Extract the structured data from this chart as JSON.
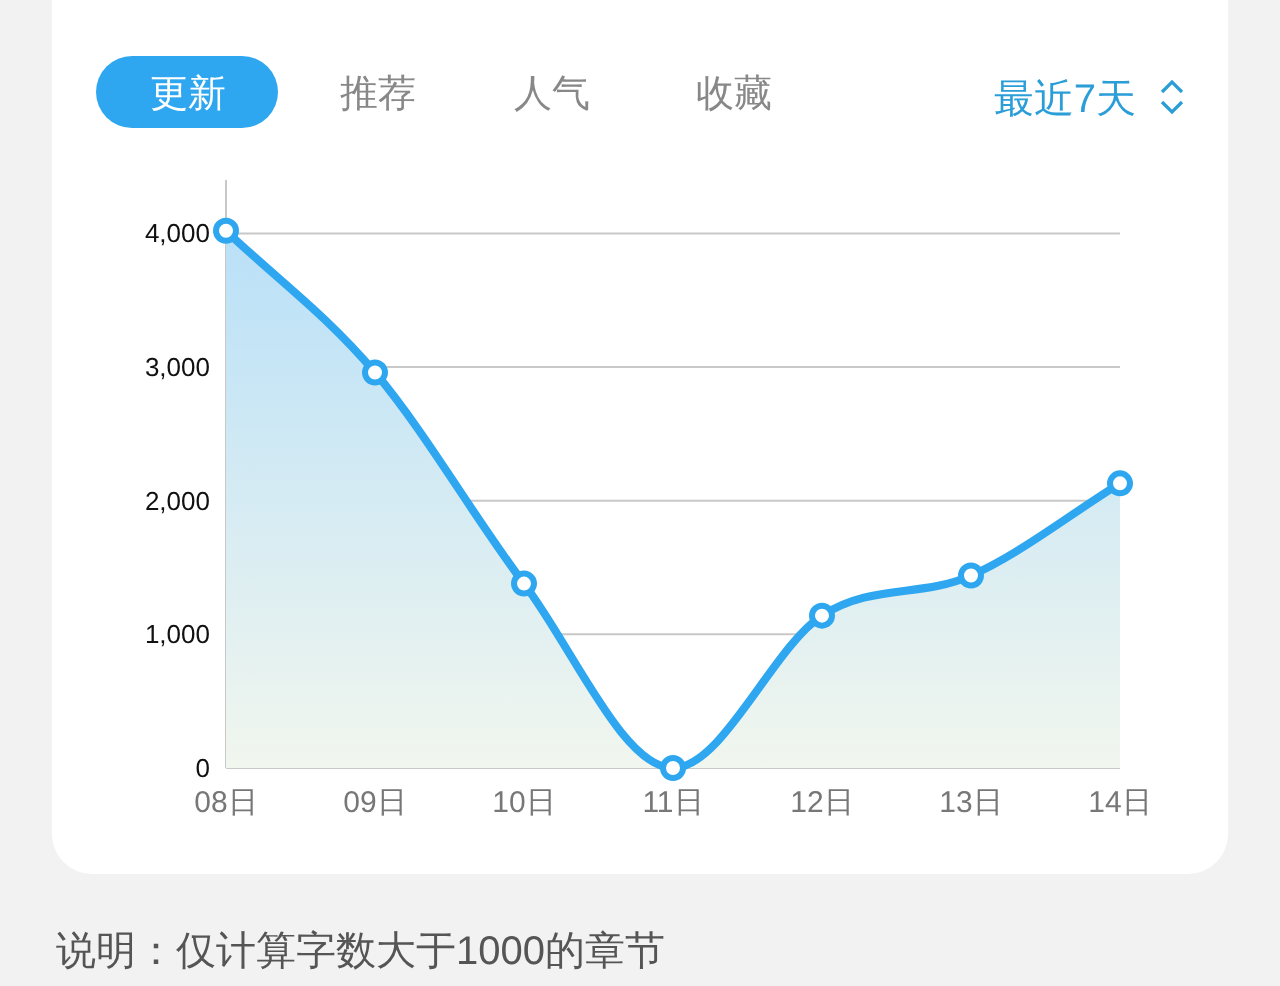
{
  "chart_data": {
    "type": "area",
    "categories": [
      "08日",
      "09日",
      "10日",
      "11日",
      "12日",
      "13日",
      "14日"
    ],
    "series": [
      {
        "color": "#2ea7f0",
        "values": [
          4020,
          2960,
          1380,
          0,
          1140,
          1440,
          2130
        ]
      }
    ],
    "ylim": [
      0,
      4400
    ],
    "yticks": [
      0,
      {
        "value": 1000,
        "label": "1,000"
      },
      {
        "value": 2000,
        "label": "2,000"
      },
      {
        "value": 3000,
        "label": "3,000"
      },
      {
        "value": 4000,
        "label": "4,000"
      }
    ],
    "grid": "y",
    "marker": "circle",
    "annotations": [
      "更新",
      "推荐",
      "人气",
      "收藏",
      "最近7天",
      "说明：仅计算字数大于1000的章节"
    ]
  }
}
